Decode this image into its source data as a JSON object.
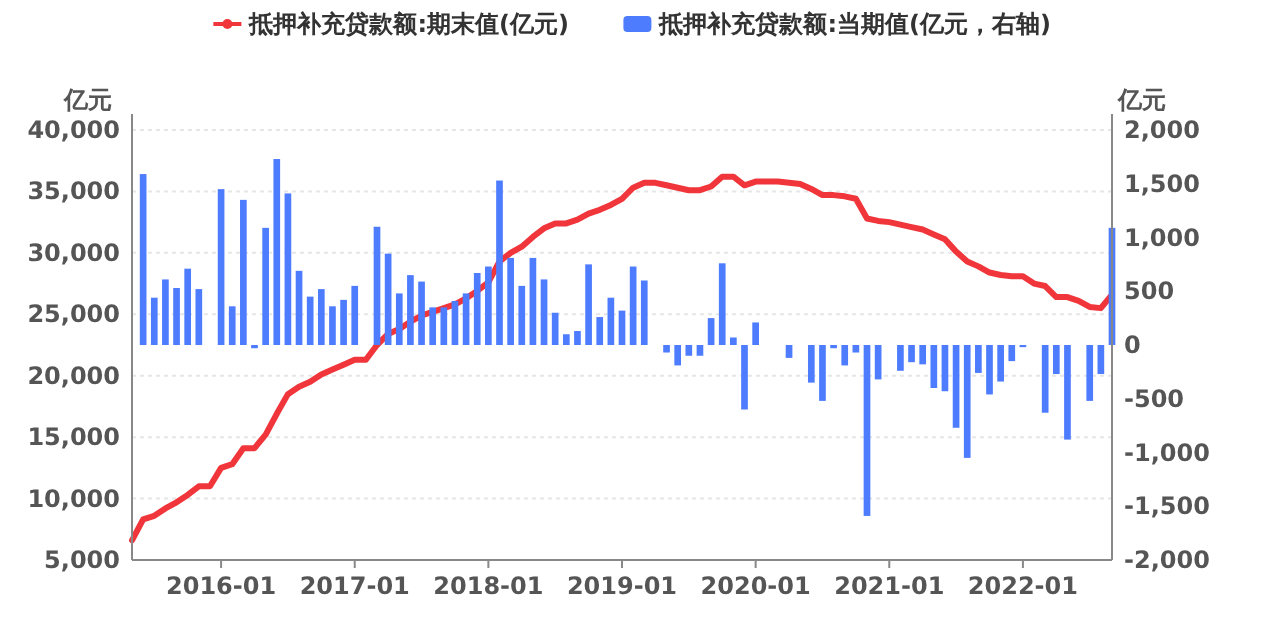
{
  "chart_data": {
    "type": "line",
    "legend": "top",
    "grid": "y",
    "marker": "none",
    "line_style": "solid",
    "ylabel": "亿元",
    "y2label": "亿元",
    "x": [
      "2015-05",
      "2015-06",
      "2015-07",
      "2015-08",
      "2015-09",
      "2015-10",
      "2015-11",
      "2015-12",
      "2016-01",
      "2016-02",
      "2016-03",
      "2016-04",
      "2016-05",
      "2016-06",
      "2016-07",
      "2016-08",
      "2016-09",
      "2016-10",
      "2016-11",
      "2016-12",
      "2017-01",
      "2017-02",
      "2017-03",
      "2017-04",
      "2017-05",
      "2017-06",
      "2017-07",
      "2017-08",
      "2017-09",
      "2017-10",
      "2017-11",
      "2017-12",
      "2018-01",
      "2018-02",
      "2018-03",
      "2018-04",
      "2018-05",
      "2018-06",
      "2018-07",
      "2018-08",
      "2018-09",
      "2018-10",
      "2018-11",
      "2018-12",
      "2019-01",
      "2019-02",
      "2019-03",
      "2019-04",
      "2019-05",
      "2019-06",
      "2019-07",
      "2019-08",
      "2019-09",
      "2019-10",
      "2019-11",
      "2019-12",
      "2020-01",
      "2020-02",
      "2020-03",
      "2020-04",
      "2020-05",
      "2020-06",
      "2020-07",
      "2020-08",
      "2020-09",
      "2020-10",
      "2020-11",
      "2020-12",
      "2021-01",
      "2021-02",
      "2021-03",
      "2021-04",
      "2021-05",
      "2021-06",
      "2021-07",
      "2021-08",
      "2021-09",
      "2021-10",
      "2021-11",
      "2021-12",
      "2022-01",
      "2022-02",
      "2022-03",
      "2022-04",
      "2022-05",
      "2022-06",
      "2022-07",
      "2022-08",
      "2022-09"
    ],
    "xlim": [
      "2015-05",
      "2022-09"
    ],
    "xticks": [
      "2016-01",
      "2017-01",
      "2018-01",
      "2019-01",
      "2020-01",
      "2021-01",
      "2022-01"
    ],
    "ylim": [
      5000,
      40000
    ],
    "yticks": [
      {
        "value": 5000,
        "label": "5,000"
      },
      {
        "value": 10000,
        "label": "10,000"
      },
      {
        "value": 15000,
        "label": "15,000"
      },
      {
        "value": 20000,
        "label": "20,000"
      },
      {
        "value": 25000,
        "label": "25,000"
      },
      {
        "value": 30000,
        "label": "30,000"
      },
      {
        "value": 35000,
        "label": "35,000"
      },
      {
        "value": 40000,
        "label": "40,000"
      }
    ],
    "y2lim": [
      -2000,
      2000
    ],
    "y2ticks": [
      {
        "value": -2000,
        "label": "-2,000"
      },
      {
        "value": -1500,
        "label": "-1,500"
      },
      {
        "value": -1000,
        "label": "-1,000"
      },
      {
        "value": -500,
        "label": "-500"
      },
      0,
      {
        "value": 500,
        "label": "500"
      },
      {
        "value": 1000,
        "label": "1,000"
      },
      {
        "value": 1500,
        "label": "1,500"
      },
      {
        "value": 2000,
        "label": "2,000"
      }
    ],
    "series": [
      {
        "name": "抵押补充贷款额:期末值(亿元)",
        "color": "#f0353b",
        "values": [
          6600,
          8300,
          8600,
          9200,
          9700,
          10300,
          11000,
          11000,
          12500,
          12800,
          14100,
          14100,
          15200,
          16900,
          18500,
          19100,
          19500,
          20100,
          20500,
          20900,
          21300,
          21300,
          22500,
          23400,
          23800,
          24400,
          24900,
          25200,
          25500,
          25800,
          26300,
          26900,
          27600,
          29300,
          30000,
          30500,
          31300,
          32000,
          32400,
          32400,
          32700,
          33200,
          33500,
          33900,
          34400,
          35300,
          35700,
          35700,
          35500,
          35300,
          35100,
          35100,
          35400,
          36200,
          36200,
          35500,
          35800,
          35800,
          35800,
          35700,
          35600,
          35200,
          34700,
          34700,
          34600,
          34400,
          32800,
          32600,
          32500,
          32300,
          32100,
          31900,
          31500,
          31100,
          30100,
          29300,
          28900,
          28400,
          28200,
          28100,
          28100,
          27500,
          27300,
          26400,
          26400,
          26100,
          25600,
          25500,
          26600
        ]
      },
      {
        "name": "抵押补充贷款额:当期值(亿元，右轴)",
        "type": "bar",
        "axis": "y2",
        "color": "#4e7cff",
        "values": [
          null,
          1590,
          440,
          610,
          530,
          710,
          520,
          null,
          1450,
          360,
          1350,
          -30,
          1090,
          1730,
          1410,
          690,
          450,
          520,
          360,
          420,
          550,
          null,
          1100,
          850,
          480,
          650,
          590,
          350,
          350,
          410,
          480,
          670,
          730,
          1530,
          810,
          550,
          810,
          610,
          300,
          100,
          130,
          750,
          260,
          440,
          320,
          730,
          600,
          null,
          -70,
          -190,
          -100,
          -100,
          250,
          760,
          70,
          -600,
          210,
          null,
          null,
          -120,
          null,
          -350,
          -520,
          -30,
          -190,
          -70,
          -1590,
          -320,
          null,
          -240,
          -160,
          -180,
          -400,
          -430,
          -770,
          -1050,
          -260,
          -460,
          -340,
          -150,
          -20,
          null,
          -630,
          -270,
          -880,
          null,
          -520,
          -270,
          1090
        ]
      }
    ]
  }
}
